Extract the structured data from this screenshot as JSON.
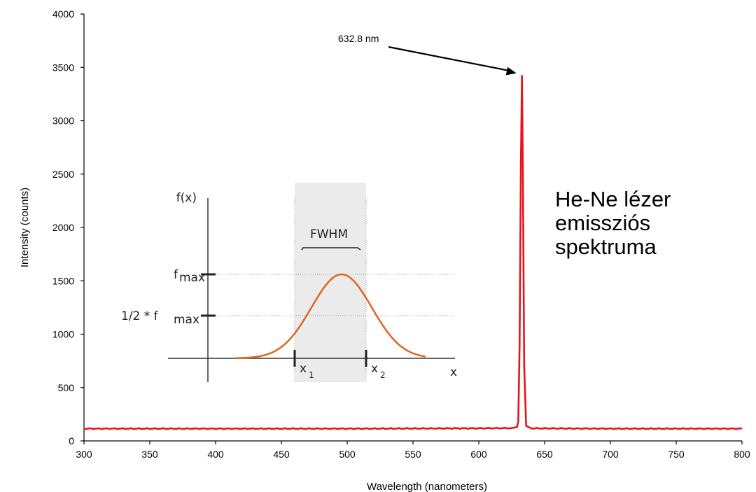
{
  "chart_data": {
    "type": "line",
    "title": "",
    "xlabel": "Wavelength (nanometers)",
    "ylabel": "Intensity (counts)",
    "xlim": [
      300,
      800
    ],
    "ylim": [
      0,
      4000
    ],
    "x_ticks": [
      "300",
      "350",
      "400",
      "450",
      "500",
      "550",
      "600",
      "650",
      "700",
      "750",
      "800"
    ],
    "y_ticks": [
      "0",
      "500",
      "1000",
      "1500",
      "2000",
      "2500",
      "3000",
      "3500",
      "4000"
    ],
    "series": [
      {
        "color": "#e8141b",
        "x": [
          300,
          400,
          500,
          600,
          625,
          629,
          630,
          631,
          632,
          632.8,
          633.5,
          634.5,
          636,
          640,
          700,
          800
        ],
        "y": [
          115,
          115,
          115,
          118,
          120,
          130,
          180,
          900,
          2600,
          3420,
          2500,
          700,
          140,
          118,
          115,
          115
        ]
      }
    ],
    "annotations": {
      "peak_label": "632.8 nm",
      "peak_x": 632.8,
      "peak_y": 3420,
      "side_label_lines": [
        "He-Ne lézer",
        "emissziós",
        "spektruma"
      ]
    },
    "inset": {
      "y_label": "f(x)",
      "x_label": "x",
      "fwhm_label": "FWHM",
      "fmax_label": "f",
      "fmax_sub": "max",
      "half_prefix": "1/2 * f",
      "half_sub": "max",
      "x1_label": "x",
      "x1_sub": "1",
      "x2_label": "x",
      "x2_sub": "2",
      "curve_color": "#e0641e",
      "shade_color": "#ebebeb"
    }
  }
}
